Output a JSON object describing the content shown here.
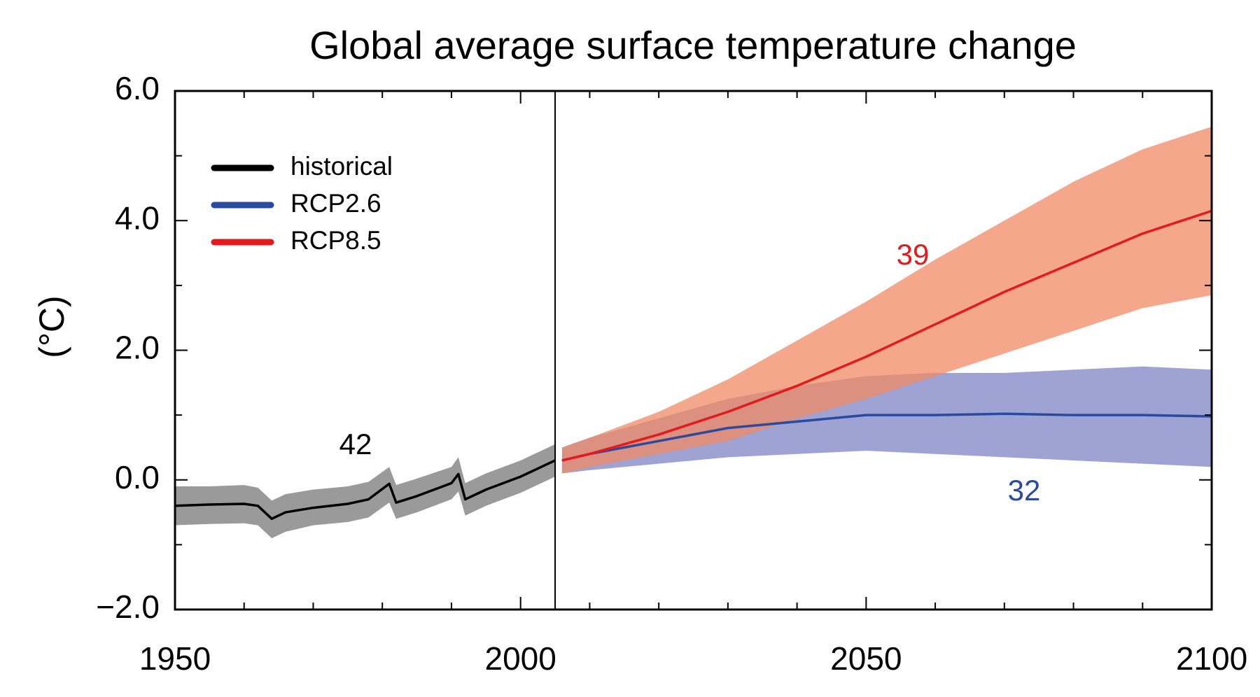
{
  "chart_data": {
    "type": "line",
    "title": "Global average surface temperature change",
    "y_label": "(°C)",
    "xlim": [
      1950,
      2100
    ],
    "ylim": [
      -2,
      6
    ],
    "xticks": [
      1950,
      2000,
      2050,
      2100
    ],
    "xticks_minor": [
      1960,
      1970,
      1980,
      1990,
      2010,
      2020,
      2030,
      2040,
      2060,
      2070,
      2080,
      2090
    ],
    "yticks": [
      {
        "value": 6,
        "label": "6.0"
      },
      {
        "value": 4,
        "label": "4.0"
      },
      {
        "value": 2,
        "label": "2.0"
      },
      {
        "value": 0,
        "label": "0.0"
      },
      {
        "value": -2,
        "label": "−2.0"
      }
    ],
    "yticks_minor": [
      5,
      3,
      1,
      -1
    ],
    "legend_position": "upper left",
    "series": [
      {
        "name": "historical",
        "color": "#000000",
        "band_color": "#8f8f8f",
        "x": [
          1950,
          1955,
          1960,
          1962,
          1964,
          1966,
          1970,
          1975,
          1978,
          1981,
          1982,
          1985,
          1990,
          1991,
          1992,
          1995,
          2000,
          2003,
          2005
        ],
        "values": [
          -0.4,
          -0.38,
          -0.37,
          -0.4,
          -0.6,
          -0.5,
          -0.43,
          -0.37,
          -0.3,
          -0.06,
          -0.35,
          -0.25,
          -0.05,
          0.09,
          -0.3,
          -0.15,
          0.05,
          0.2,
          0.3
        ],
        "lower": [
          -0.7,
          -0.68,
          -0.67,
          -0.7,
          -0.9,
          -0.8,
          -0.7,
          -0.65,
          -0.58,
          -0.35,
          -0.6,
          -0.5,
          -0.3,
          -0.18,
          -0.55,
          -0.4,
          -0.2,
          -0.05,
          0.05
        ],
        "upper": [
          -0.1,
          -0.1,
          -0.08,
          -0.12,
          -0.32,
          -0.22,
          -0.15,
          -0.1,
          -0.03,
          0.2,
          -0.08,
          0.02,
          0.2,
          0.35,
          -0.05,
          0.1,
          0.3,
          0.45,
          0.55
        ]
      },
      {
        "name": "RCP2.6",
        "color": "#2a4aa0",
        "band_color": "#7d84c4",
        "x": [
          2006,
          2010,
          2020,
          2030,
          2040,
          2050,
          2060,
          2070,
          2080,
          2090,
          2100
        ],
        "values": [
          0.3,
          0.4,
          0.6,
          0.8,
          0.9,
          1.0,
          1.0,
          1.02,
          1.0,
          1.0,
          0.98
        ],
        "lower": [
          0.1,
          0.15,
          0.25,
          0.35,
          0.4,
          0.45,
          0.4,
          0.35,
          0.3,
          0.25,
          0.2
        ],
        "upper": [
          0.5,
          0.65,
          0.95,
          1.25,
          1.45,
          1.6,
          1.65,
          1.65,
          1.7,
          1.75,
          1.7
        ]
      },
      {
        "name": "RCP8.5",
        "color": "#e41a1c",
        "band_color": "#f08a64",
        "x": [
          2006,
          2010,
          2020,
          2030,
          2040,
          2050,
          2060,
          2070,
          2080,
          2090,
          2100
        ],
        "values": [
          0.3,
          0.4,
          0.7,
          1.05,
          1.45,
          1.9,
          2.4,
          2.9,
          3.35,
          3.8,
          4.15
        ],
        "lower": [
          0.1,
          0.2,
          0.4,
          0.6,
          0.95,
          1.25,
          1.6,
          1.95,
          2.3,
          2.65,
          2.85
        ],
        "upper": [
          0.5,
          0.65,
          1.05,
          1.55,
          2.15,
          2.75,
          3.4,
          4.0,
          4.6,
          5.1,
          5.45
        ]
      }
    ],
    "annotations": [
      {
        "text": "42",
        "color": "#000000"
      },
      {
        "text": "39",
        "color": "#e41a1c"
      },
      {
        "text": "32",
        "color": "#2a4aa0"
      }
    ]
  }
}
